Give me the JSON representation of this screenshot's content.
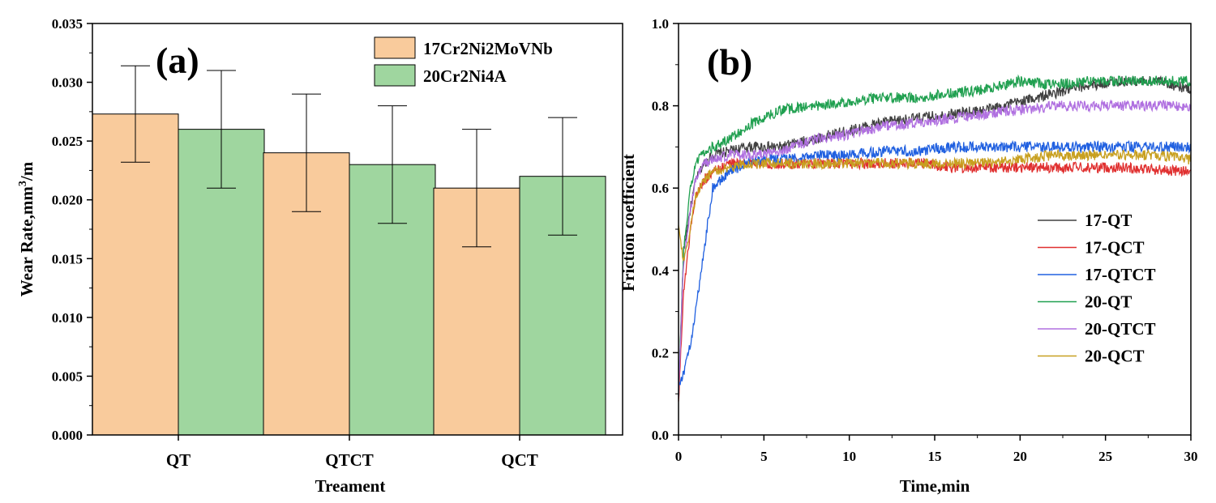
{
  "chart_data": [
    {
      "type": "bar",
      "panel_label": "(a)",
      "title": "",
      "xlabel": "Treament",
      "ylabel_main": "Wear Rate,mm",
      "ylabel_sup": "3",
      "ylabel_end": "/m",
      "categories": [
        "QT",
        "QTCT",
        "QCT"
      ],
      "series": [
        {
          "name": "17Cr2Ni2MoVNb",
          "color": "#f9cb9c",
          "values": [
            0.0273,
            0.024,
            0.021
          ],
          "errors": [
            0.0041,
            0.005,
            0.005
          ]
        },
        {
          "name": "20Cr2Ni4A",
          "color": "#9fd69f",
          "values": [
            0.026,
            0.023,
            0.022
          ],
          "errors": [
            0.005,
            0.005,
            0.005
          ]
        }
      ],
      "ylim": [
        0,
        0.035
      ],
      "yticks": [
        "0.000",
        "0.005",
        "0.010",
        "0.015",
        "0.020",
        "0.025",
        "0.030",
        "0.035"
      ],
      "legend_position": "top-right"
    },
    {
      "type": "line",
      "panel_label": "(b)",
      "title": "",
      "xlabel": "Time,min",
      "ylabel": "Friction coefficient",
      "xlim": [
        0,
        30
      ],
      "ylim": [
        0,
        1.0
      ],
      "xticks": [
        "0",
        "5",
        "10",
        "15",
        "20",
        "25",
        "30"
      ],
      "yticks": [
        "0.0",
        "0.2",
        "0.4",
        "0.6",
        "0.8",
        "1.0"
      ],
      "legend_position": "lower-right",
      "series": [
        {
          "name": "17-QT",
          "color": "#404040",
          "x": [
            0,
            0.3,
            0.7,
            1,
            1.5,
            2,
            3,
            4,
            5,
            6,
            8,
            10,
            12,
            14,
            16,
            18,
            20,
            22,
            24,
            26,
            28,
            30
          ],
          "y": [
            0.1,
            0.45,
            0.55,
            0.62,
            0.66,
            0.68,
            0.69,
            0.7,
            0.7,
            0.7,
            0.72,
            0.74,
            0.76,
            0.77,
            0.78,
            0.79,
            0.81,
            0.83,
            0.85,
            0.86,
            0.86,
            0.84
          ]
        },
        {
          "name": "17-QCT",
          "color": "#e03030",
          "x": [
            0,
            0.3,
            0.7,
            1,
            1.5,
            2,
            3,
            4,
            5,
            6,
            8,
            10,
            12,
            14,
            16,
            18,
            20,
            22,
            24,
            26,
            28,
            30
          ],
          "y": [
            0.08,
            0.35,
            0.5,
            0.58,
            0.62,
            0.64,
            0.66,
            0.66,
            0.66,
            0.66,
            0.66,
            0.66,
            0.66,
            0.66,
            0.65,
            0.65,
            0.65,
            0.65,
            0.65,
            0.65,
            0.645,
            0.64
          ]
        },
        {
          "name": "17-QTCT",
          "color": "#2060e0",
          "x": [
            0,
            0.3,
            0.7,
            1,
            1.5,
            2,
            3,
            4,
            5,
            6,
            8,
            10,
            12,
            14,
            16,
            18,
            20,
            22,
            24,
            26,
            28,
            30
          ],
          "y": [
            0.12,
            0.15,
            0.22,
            0.3,
            0.45,
            0.6,
            0.64,
            0.66,
            0.67,
            0.67,
            0.68,
            0.68,
            0.69,
            0.69,
            0.7,
            0.7,
            0.7,
            0.7,
            0.7,
            0.7,
            0.7,
            0.7
          ]
        },
        {
          "name": "20-QT",
          "color": "#20a050",
          "x": [
            0,
            0.3,
            0.7,
            1,
            1.5,
            2,
            3,
            4,
            5,
            6,
            8,
            10,
            12,
            14,
            16,
            18,
            20,
            22,
            24,
            26,
            28,
            30
          ],
          "y": [
            0.1,
            0.45,
            0.6,
            0.66,
            0.69,
            0.7,
            0.72,
            0.75,
            0.77,
            0.79,
            0.8,
            0.81,
            0.82,
            0.82,
            0.83,
            0.84,
            0.86,
            0.85,
            0.86,
            0.86,
            0.86,
            0.86
          ]
        },
        {
          "name": "20-QTCT",
          "color": "#b070e0",
          "x": [
            0,
            0.3,
            0.7,
            1,
            1.5,
            2,
            3,
            4,
            5,
            6,
            8,
            10,
            12,
            14,
            16,
            18,
            20,
            22,
            24,
            26,
            28,
            30
          ],
          "y": [
            0.1,
            0.42,
            0.55,
            0.62,
            0.66,
            0.67,
            0.68,
            0.68,
            0.68,
            0.69,
            0.72,
            0.73,
            0.75,
            0.76,
            0.77,
            0.78,
            0.79,
            0.8,
            0.8,
            0.8,
            0.8,
            0.8
          ]
        },
        {
          "name": "20-QCT",
          "color": "#c8a020",
          "x": [
            0,
            0.3,
            0.7,
            1,
            1.5,
            2,
            3,
            4,
            5,
            6,
            8,
            10,
            12,
            14,
            16,
            18,
            20,
            22,
            24,
            26,
            28,
            30
          ],
          "y": [
            0.5,
            0.42,
            0.5,
            0.58,
            0.62,
            0.64,
            0.65,
            0.66,
            0.66,
            0.66,
            0.66,
            0.66,
            0.66,
            0.66,
            0.66,
            0.66,
            0.67,
            0.68,
            0.68,
            0.68,
            0.68,
            0.67
          ]
        }
      ]
    }
  ]
}
